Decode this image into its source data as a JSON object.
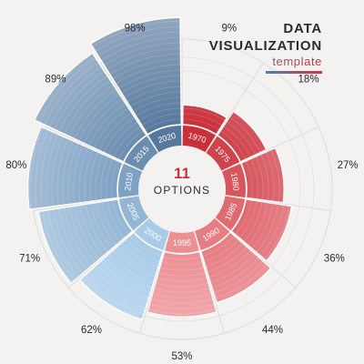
{
  "title": {
    "line1": "DATA",
    "line2": "VISUALIZATION",
    "subtitle": "template"
  },
  "center": {
    "count": "11",
    "label": "OPTIONS"
  },
  "colors": {
    "red_dark": "#c9303a",
    "red_light": "#f4a3a6",
    "blue_dark": "#2e4e78",
    "blue_light": "#a8cbe8",
    "grid": "#dcdcdc",
    "text": "#2b2b33",
    "center_red": "#c9333b",
    "background": "#f4f2f1"
  },
  "chart_data": {
    "type": "radial-bar",
    "categories": [
      "1970",
      "1975",
      "1980",
      "1985",
      "1990",
      "1995",
      "2000",
      "2005",
      "2010",
      "2015",
      "2020"
    ],
    "values": [
      9,
      18,
      27,
      36,
      44,
      53,
      62,
      71,
      80,
      89,
      98
    ],
    "value_labels": [
      "9%",
      "18%",
      "27%",
      "36%",
      "44%",
      "53%",
      "62%",
      "71%",
      "80%",
      "89%",
      "98%"
    ],
    "ylim": [
      0,
      100
    ],
    "unit": "%",
    "grid": true,
    "title": "DATA VISUALIZATION",
    "subtitle": "template"
  }
}
